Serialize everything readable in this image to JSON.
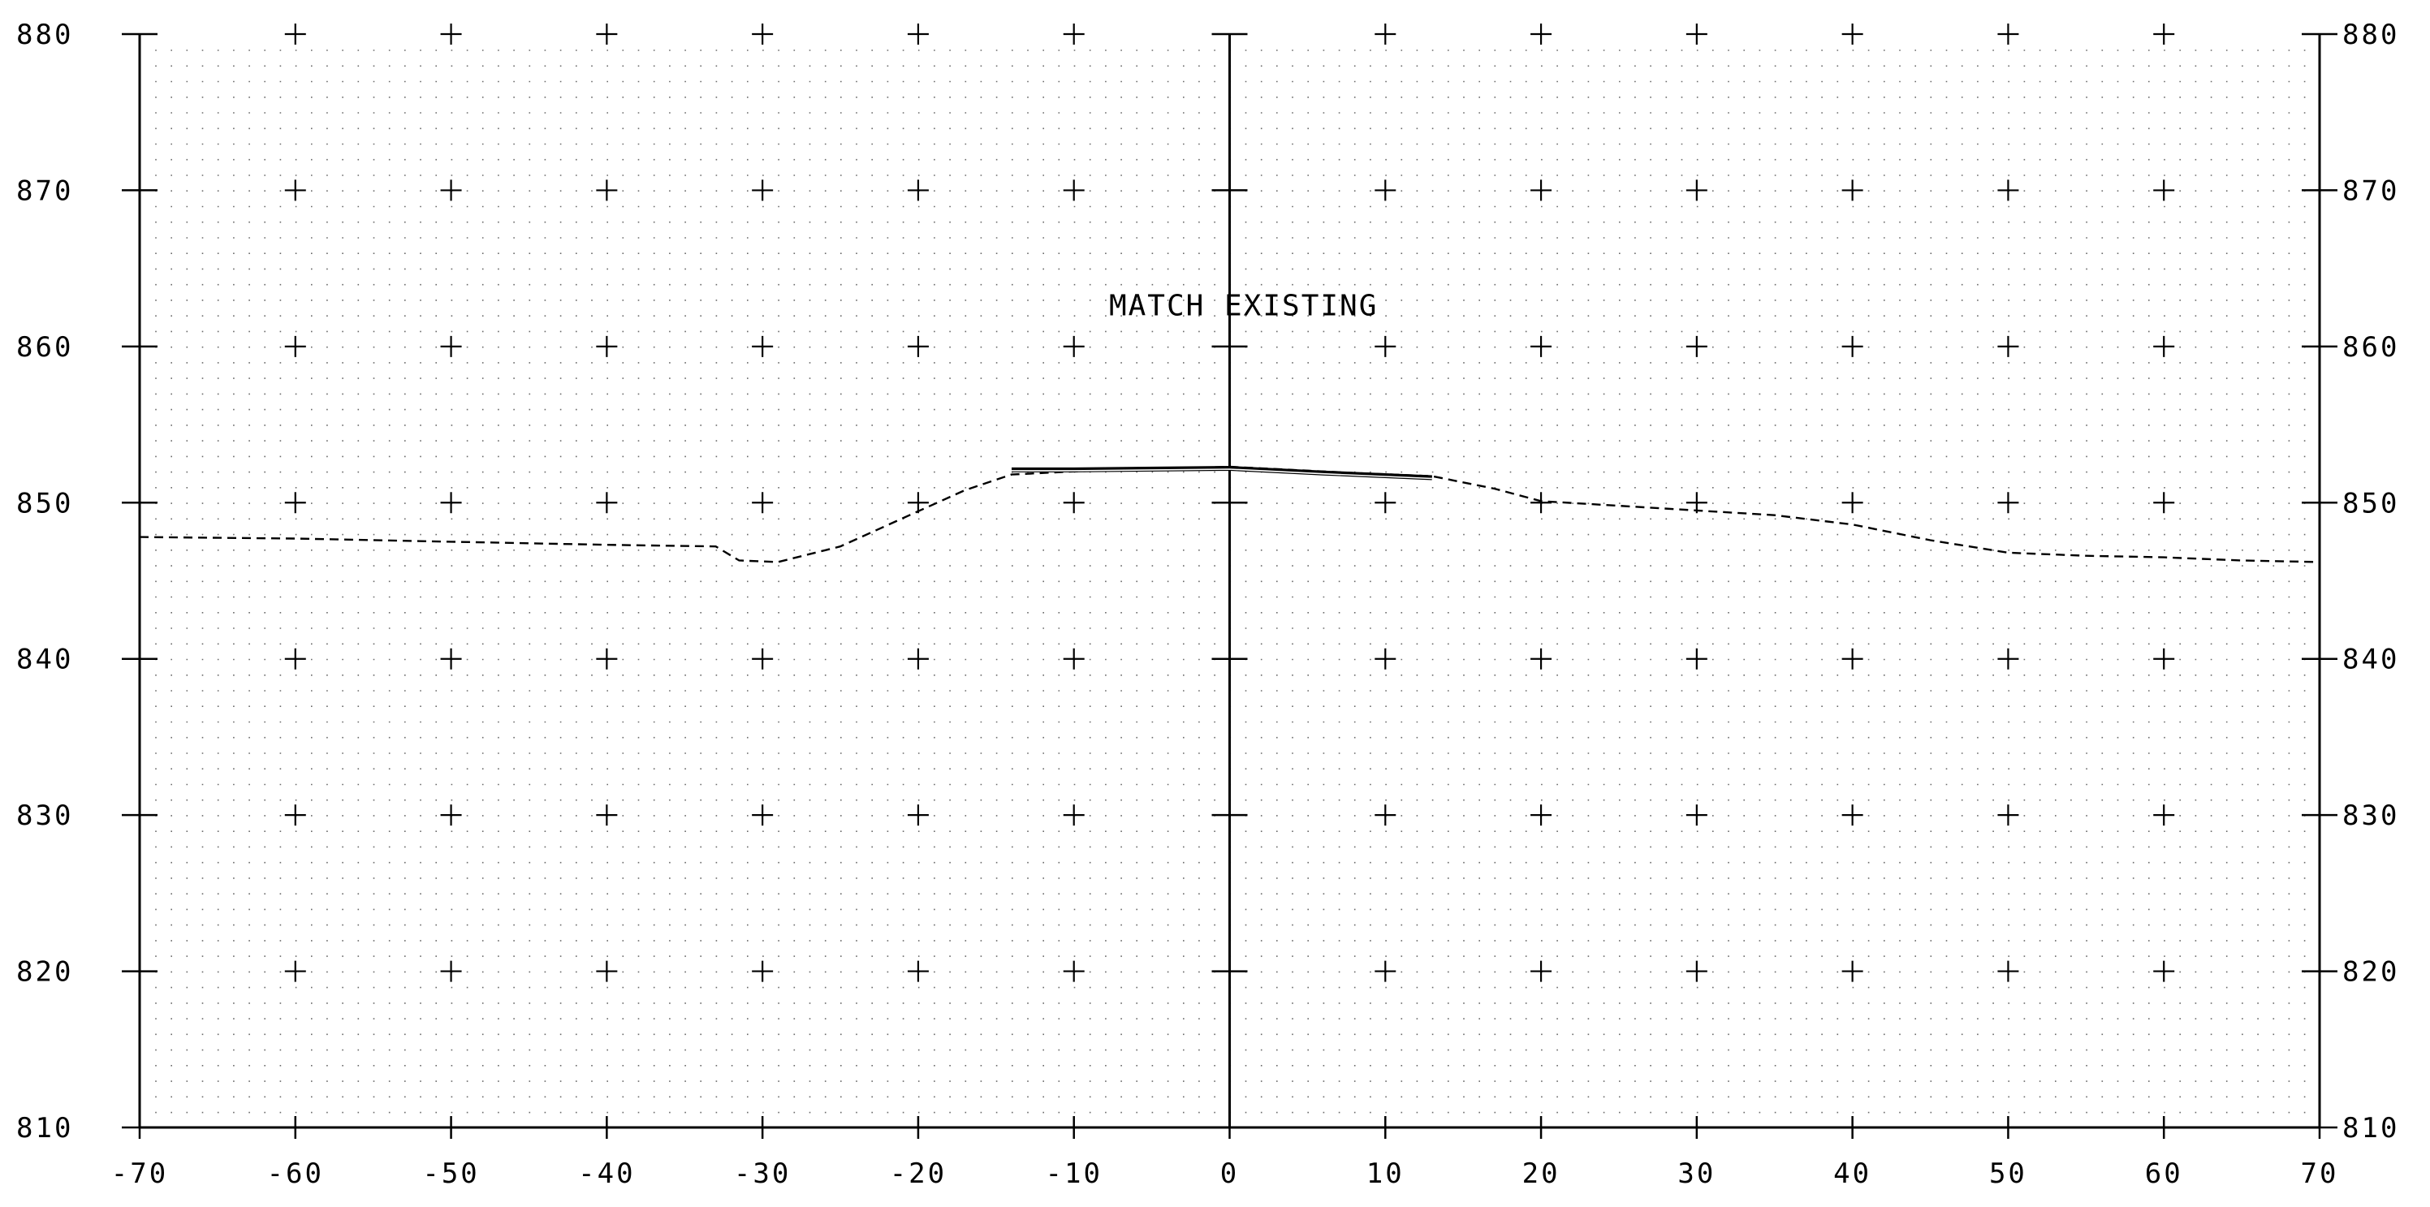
{
  "chart_data": {
    "type": "line",
    "title": "",
    "xlabel": "",
    "ylabel": "",
    "xlim": [
      -70,
      70
    ],
    "ylim": [
      810,
      880
    ],
    "x_ticks": [
      -70,
      -60,
      -50,
      -40,
      -30,
      -20,
      -10,
      0,
      10,
      20,
      30,
      40,
      50,
      60,
      70
    ],
    "y_ticks": [
      810,
      820,
      830,
      840,
      850,
      860,
      870,
      880
    ],
    "x_tick_labels": [
      "-70",
      "-60",
      "-50",
      "-40",
      "-30",
      "-20",
      "-10",
      "0",
      "10",
      "20",
      "30",
      "40",
      "50",
      "60",
      "70"
    ],
    "y_tick_labels": [
      "810",
      "820",
      "830",
      "840",
      "850",
      "860",
      "870",
      "880"
    ],
    "grid": "dotted",
    "right_axis_labels": true,
    "center_axis_x": 0,
    "annotations": [
      {
        "text": "MATCH EXISTING",
        "x": 1,
        "y": 862
      }
    ],
    "series": [
      {
        "style": "dashed",
        "color": "#000000",
        "points": [
          [
            -70,
            847.8
          ],
          [
            -60,
            847.7
          ],
          [
            -50,
            847.5
          ],
          [
            -40,
            847.3
          ],
          [
            -33,
            847.2
          ],
          [
            -31.5,
            846.3
          ],
          [
            -29,
            846.2
          ],
          [
            -25,
            847.2
          ],
          [
            -21,
            849.0
          ],
          [
            -17,
            850.8
          ],
          [
            -14,
            851.8
          ],
          [
            -10,
            852.0
          ],
          [
            0,
            852.3
          ],
          [
            8,
            851.9
          ],
          [
            13,
            851.7
          ],
          [
            17,
            850.9
          ],
          [
            20,
            850.1
          ],
          [
            25,
            849.8
          ],
          [
            30,
            849.5
          ],
          [
            35,
            849.2
          ],
          [
            40,
            848.6
          ],
          [
            45,
            847.6
          ],
          [
            50,
            846.8
          ],
          [
            55,
            846.6
          ],
          [
            60,
            846.5
          ],
          [
            65,
            846.3
          ],
          [
            70,
            846.2
          ]
        ]
      },
      {
        "style": "solid-heavy",
        "color": "#000000",
        "points": [
          [
            -14,
            852.1
          ],
          [
            -10,
            852.1
          ],
          [
            0,
            852.2
          ],
          [
            6,
            851.9
          ],
          [
            13,
            851.6
          ]
        ]
      }
    ]
  }
}
